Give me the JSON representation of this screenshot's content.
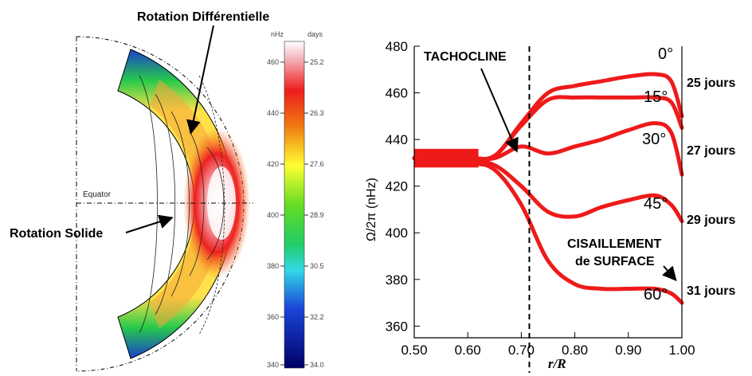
{
  "colors": {
    "curve": "#ee1a1a",
    "axis": "#000000",
    "colormap_high": "#ffffff",
    "colormap_mid": "#ffff33",
    "colormap_low": "#000066"
  },
  "left_panel": {
    "label_top": "Rotation Différentielle",
    "label_left": "Rotation Solide",
    "equator_label": "Equator",
    "colorbar": {
      "nhz_header": "nHz",
      "days_header": "days",
      "nhz_ticks": [
        "460",
        "440",
        "420",
        "400",
        "380",
        "360",
        "340"
      ],
      "days_ticks": [
        "25.2",
        "26.3",
        "27.6",
        "28.9",
        "30.5",
        "32.2",
        "34.0"
      ]
    }
  },
  "chart_data": {
    "type": "line",
    "xlabel": "r/R",
    "ylabel": "Ω/2π (nHz)",
    "xlim": [
      0.5,
      1.0
    ],
    "ylim": [
      355,
      480
    ],
    "xticks": [
      "0.50",
      "0.60",
      "0.70",
      "0.80",
      "0.90",
      "1.00"
    ],
    "yticks": [
      "360",
      "380",
      "400",
      "420",
      "440",
      "460",
      "480"
    ],
    "vline_x": 0.715,
    "series": [
      {
        "name": "0°",
        "x": [
          0.5,
          0.6,
          0.65,
          0.7,
          0.75,
          0.8,
          0.85,
          0.9,
          0.95,
          0.98,
          1.0
        ],
        "y": [
          432,
          432,
          433,
          447,
          460,
          463,
          465,
          467,
          468,
          465,
          450
        ]
      },
      {
        "name": "15°",
        "x": [
          0.5,
          0.6,
          0.65,
          0.7,
          0.75,
          0.8,
          0.85,
          0.9,
          0.95,
          0.98,
          1.0
        ],
        "y": [
          432,
          432,
          433,
          446,
          457,
          458,
          458,
          458,
          458,
          456,
          445
        ]
      },
      {
        "name": "30°",
        "x": [
          0.5,
          0.6,
          0.65,
          0.7,
          0.75,
          0.8,
          0.85,
          0.9,
          0.95,
          0.98,
          1.0
        ],
        "y": [
          432,
          432,
          432,
          437,
          434,
          437,
          440,
          444,
          447,
          443,
          425
        ]
      },
      {
        "name": "45°",
        "x": [
          0.5,
          0.6,
          0.65,
          0.7,
          0.75,
          0.8,
          0.85,
          0.9,
          0.95,
          0.98,
          1.0
        ],
        "y": [
          432,
          431,
          429,
          420,
          409,
          407,
          411,
          414,
          416,
          412,
          405
        ]
      },
      {
        "name": "60°",
        "x": [
          0.5,
          0.6,
          0.65,
          0.7,
          0.75,
          0.8,
          0.85,
          0.9,
          0.95,
          0.98,
          1.0
        ],
        "y": [
          432,
          430,
          427,
          412,
          388,
          378,
          376,
          376,
          376,
          374,
          370
        ]
      }
    ],
    "annotations": {
      "tachocline": "TACHOCLINE",
      "shear_line1": "CISAILLEMENT",
      "shear_line2": "de SURFACE"
    },
    "periods": [
      "25 jours",
      "27 jours",
      "29 jours",
      "31 jours"
    ]
  }
}
